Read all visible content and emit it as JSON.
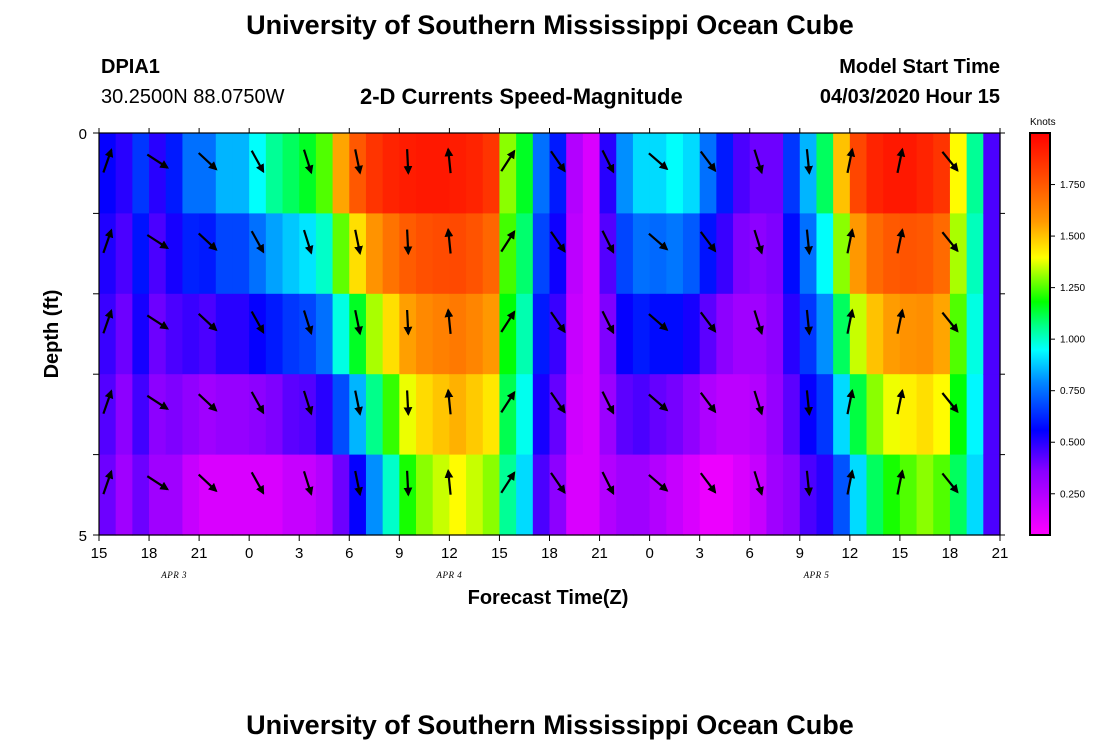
{
  "header": {
    "title": "University of Southern Mississippi Ocean Cube",
    "station_id": "DPIA1",
    "coords": "30.2500N 88.0750W",
    "subtitle": "2-D Currents Speed-Magnitude",
    "model_start_label": "Model Start Time",
    "model_start_value": "04/03/2020 Hour 15"
  },
  "footer": {
    "title": "University of Southern Mississippi Ocean Cube"
  },
  "chart_data": {
    "type": "heatmap",
    "xlabel": "Forecast Time(Z)",
    "ylabel": "Depth (ft)",
    "x_tick_labels": [
      "15",
      "18",
      "21",
      "0",
      "3",
      "6",
      "9",
      "12",
      "15",
      "18",
      "21",
      "0",
      "3",
      "6",
      "9",
      "12",
      "15",
      "18",
      "21"
    ],
    "day_labels": [
      {
        "label": "APR 3",
        "at_hour": 4.5
      },
      {
        "label": "APR 4",
        "at_hour": 21
      },
      {
        "label": "APR 5",
        "at_hour": 43
      }
    ],
    "y_tick_labels": [
      "0",
      "5"
    ],
    "ylim": [
      0,
      5
    ],
    "x_range_hours": [
      0,
      54
    ],
    "colorbar": {
      "unit": "Knots",
      "min": 0.05,
      "max": 2.0,
      "tick_values": [
        0.25,
        0.5,
        0.75,
        1.0,
        1.25,
        1.5,
        1.75
      ],
      "tick_labels": [
        "0.250",
        "0.500",
        "0.750",
        "1.000",
        "1.250",
        "1.500",
        "1.750"
      ]
    },
    "columns_hours": [
      0,
      1,
      2,
      3,
      4,
      5,
      6,
      7,
      8,
      9,
      10,
      11,
      12,
      13,
      14,
      15,
      16,
      17,
      18,
      19,
      20,
      21,
      22,
      23,
      24,
      25,
      26,
      27,
      28,
      29,
      30,
      31,
      32,
      33,
      34,
      35,
      36,
      37,
      38,
      39,
      40,
      41,
      42,
      43,
      44,
      45,
      46,
      47,
      48,
      49,
      50,
      51,
      52,
      53
    ],
    "speed_top_profile": [
      0.55,
      0.5,
      0.65,
      0.5,
      0.6,
      0.75,
      0.75,
      0.85,
      0.85,
      0.95,
      1.05,
      1.1,
      1.15,
      1.25,
      1.55,
      1.75,
      1.85,
      1.9,
      1.92,
      1.93,
      1.93,
      1.92,
      1.9,
      1.85,
      1.3,
      1.15,
      0.75,
      0.6,
      0.25,
      0.15,
      0.5,
      0.8,
      0.9,
      0.9,
      0.95,
      0.9,
      0.75,
      0.6,
      0.45,
      0.4,
      0.4,
      0.65,
      0.85,
      1.1,
      1.5,
      1.8,
      1.9,
      1.93,
      1.93,
      1.9,
      1.85,
      1.4,
      1.05,
      0.45
    ],
    "speed_bottom_profile": [
      0.4,
      0.3,
      0.4,
      0.3,
      0.3,
      0.2,
      0.15,
      0.15,
      0.15,
      0.15,
      0.15,
      0.2,
      0.2,
      0.25,
      0.4,
      0.55,
      0.8,
      1.0,
      1.2,
      1.3,
      1.35,
      1.4,
      1.35,
      1.3,
      1.05,
      0.9,
      0.45,
      0.35,
      0.15,
      0.15,
      0.25,
      0.3,
      0.3,
      0.25,
      0.2,
      0.15,
      0.1,
      0.1,
      0.15,
      0.2,
      0.3,
      0.35,
      0.45,
      0.5,
      0.7,
      0.9,
      1.1,
      1.2,
      1.25,
      1.3,
      1.25,
      1.1,
      0.9,
      0.45
    ],
    "vectors": [
      {
        "hour": 0.5,
        "u": 0.35,
        "v": 1.0
      },
      {
        "hour": 3.5,
        "u": 0.85,
        "v": -0.55
      },
      {
        "hour": 6.5,
        "u": 0.75,
        "v": -0.7
      },
      {
        "hour": 9.5,
        "u": 0.5,
        "v": -0.9
      },
      {
        "hour": 12.5,
        "u": 0.3,
        "v": -0.95
      },
      {
        "hour": 15.5,
        "u": 0.2,
        "v": -0.98
      },
      {
        "hour": 18.5,
        "u": 0.05,
        "v": -1.0
      },
      {
        "hour": 21.0,
        "u": -0.1,
        "v": 1.0
      },
      {
        "hour": 24.5,
        "u": 0.55,
        "v": 0.85
      },
      {
        "hour": 27.5,
        "u": 0.55,
        "v": -0.8
      },
      {
        "hour": 30.5,
        "u": 0.45,
        "v": -0.9
      },
      {
        "hour": 33.5,
        "u": 0.75,
        "v": -0.65
      },
      {
        "hour": 36.5,
        "u": 0.6,
        "v": -0.8
      },
      {
        "hour": 39.5,
        "u": 0.3,
        "v": -0.95
      },
      {
        "hour": 42.5,
        "u": 0.1,
        "v": -1.0
      },
      {
        "hour": 45.0,
        "u": 0.2,
        "v": 1.0
      },
      {
        "hour": 48.0,
        "u": 0.2,
        "v": 0.98
      },
      {
        "hour": 51.0,
        "u": 0.65,
        "v": -0.8
      }
    ]
  }
}
